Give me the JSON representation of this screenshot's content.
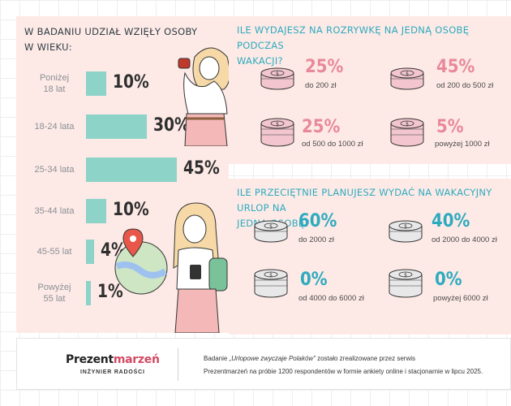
{
  "age": {
    "heading_line1": "W badaniu udział wzięły osoby",
    "heading_line2": "w wieku:",
    "groups": [
      {
        "label_line1": "Poniżej",
        "label_line2": "18 lat",
        "percent": 10,
        "display": "10%"
      },
      {
        "label_line1": "18-24 lata",
        "label_line2": "",
        "percent": 30,
        "display": "30%"
      },
      {
        "label_line1": "25-34 lata",
        "label_line2": "",
        "percent": 45,
        "display": "45%"
      },
      {
        "label_line1": "35-44 lata",
        "label_line2": "",
        "percent": 10,
        "display": "10%"
      },
      {
        "label_line1": "45-55 lat",
        "label_line2": "",
        "percent": 4,
        "display": "4%"
      },
      {
        "label_line1": "Powyżej",
        "label_line2": "55 lat",
        "percent": 1,
        "display": "1%"
      }
    ]
  },
  "entertainment": {
    "heading_line1": "Ile wydajesz na rozrywkę na jedną osobę podczas",
    "heading_line2": "wakacji?",
    "items": [
      {
        "value": "25%",
        "desc": "do 200 zł"
      },
      {
        "value": "45%",
        "desc": "od 200 do 500 zł"
      },
      {
        "value": "25%",
        "desc": "od 500 do 1000 zł"
      },
      {
        "value": "5%",
        "desc": "powyżej 1000 zł"
      }
    ]
  },
  "vacation": {
    "heading_line1": "Ile przeciętnie planujesz wydać na wakacyjny urlop na",
    "heading_line2": "jedną osobę?",
    "items": [
      {
        "value": "60%",
        "desc": "do 2000 zł"
      },
      {
        "value": "40%",
        "desc": "od 2000 do 4000 zł"
      },
      {
        "value": "0%",
        "desc": "od 4000 do 6000 zł"
      },
      {
        "value": "0%",
        "desc": "powyżej 6000 zł"
      }
    ]
  },
  "footer": {
    "brand_part1": "Prezent",
    "brand_part2": "marzeń",
    "brand_tagline": "INŻYNIER RADOŚCI",
    "text_line1_prefix": "Badanie ",
    "text_line1_italic": "„Urlopowe zwyczaje Polaków”",
    "text_line1_suffix": " zostało zrealizowane przez serwis",
    "text_line2": "Prezentmarzeń na próbie 1200 respondentów w formie ankiety online i stacjonarnie w lipcu 2025."
  },
  "colors": {
    "panel_bg": "#fdeae6",
    "bar": "#8dd3c8",
    "pink_accent": "#e8899b",
    "teal_accent": "#2eaabf",
    "pink_coin": "#f3c6cf",
    "grey_coin": "#e8e8e8"
  }
}
